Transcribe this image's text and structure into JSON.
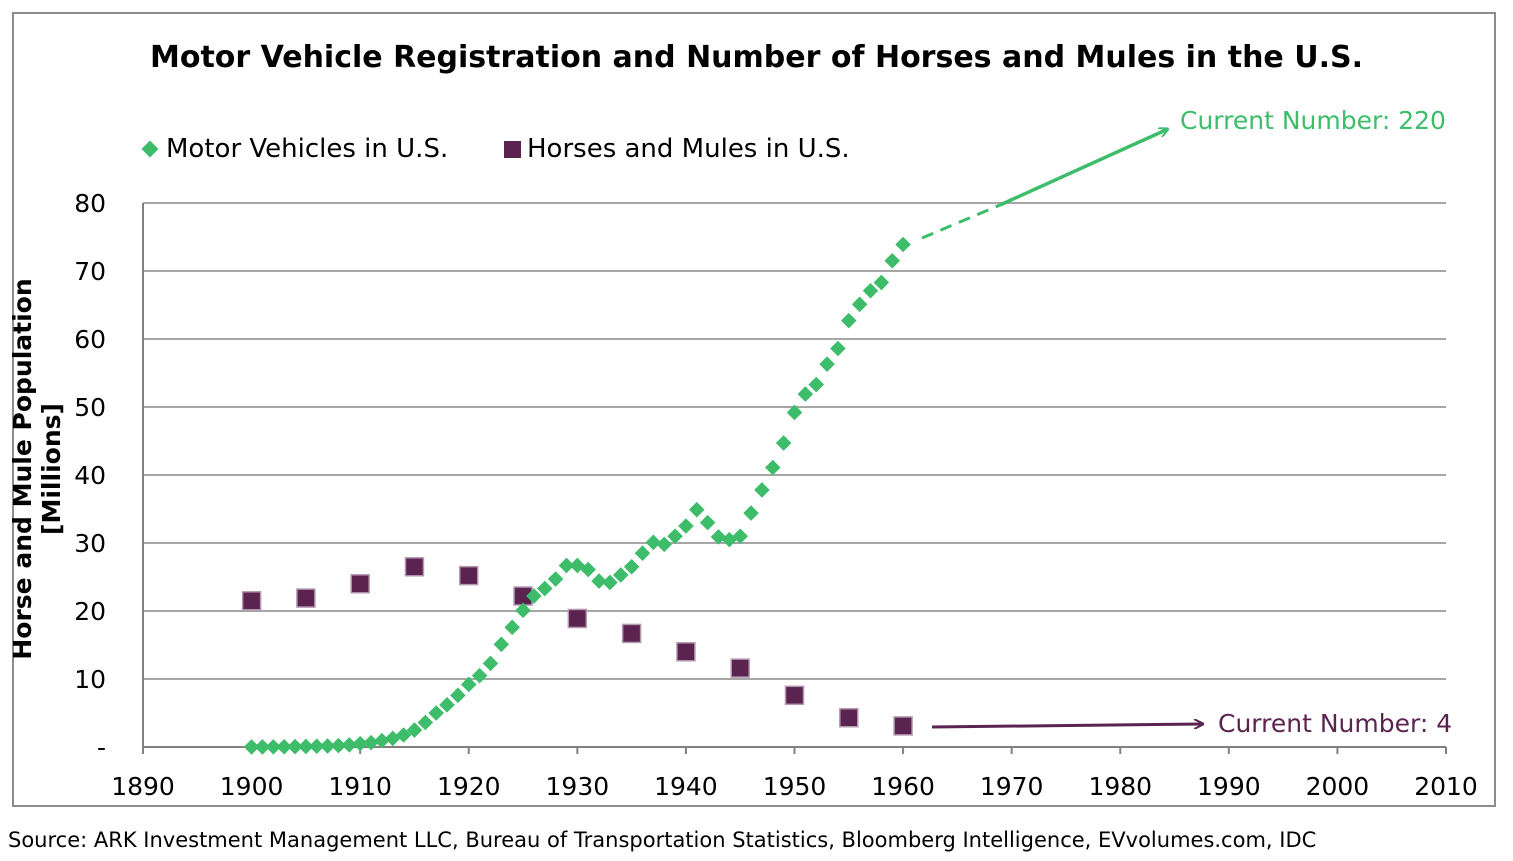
{
  "colors": {
    "motor": "#3dbd6a",
    "horse": "#5b2450",
    "grid": "#a6a6a6",
    "axis": "#808080"
  },
  "annotations": {
    "motor_current": "Current Number: 220",
    "horse_current": "Current Number: 4"
  },
  "source": "Source: ARK Investment Management LLC, Bureau of Transportation Statistics, Bloomberg Intelligence, EVvolumes.com, IDC",
  "chart_data": {
    "type": "scatter",
    "title": "Motor Vehicle Registration and Number of Horses and Mules in the U.S.",
    "xlabel": "",
    "ylabel": "Horse and Mule Population [Millions]",
    "xlim": [
      1890,
      2010
    ],
    "ylim": [
      0,
      80
    ],
    "x_ticks": [
      "1890",
      "1900",
      "1910",
      "1920",
      "1930",
      "1940",
      "1950",
      "1960",
      "1970",
      "1980",
      "1990",
      "2000",
      "2010"
    ],
    "y_ticks": [
      "-",
      "10",
      "20",
      "30",
      "40",
      "50",
      "60",
      "70",
      "80"
    ],
    "legend_position": "top-left",
    "series": [
      {
        "name": "Motor Vehicles in U.S.",
        "marker": "diamond",
        "x": [
          1900,
          1901,
          1902,
          1903,
          1904,
          1905,
          1906,
          1907,
          1908,
          1909,
          1910,
          1911,
          1912,
          1913,
          1914,
          1915,
          1916,
          1917,
          1918,
          1919,
          1920,
          1921,
          1922,
          1923,
          1924,
          1925,
          1926,
          1927,
          1928,
          1929,
          1930,
          1931,
          1932,
          1933,
          1934,
          1935,
          1936,
          1937,
          1938,
          1939,
          1940,
          1941,
          1942,
          1943,
          1944,
          1945,
          1946,
          1947,
          1948,
          1949,
          1950,
          1951,
          1952,
          1953,
          1954,
          1955,
          1956,
          1957,
          1958,
          1959,
          1960
        ],
        "values": [
          0.01,
          0.01,
          0.02,
          0.03,
          0.05,
          0.08,
          0.11,
          0.14,
          0.2,
          0.31,
          0.5,
          0.64,
          0.94,
          1.26,
          1.76,
          2.49,
          3.6,
          5.0,
          6.2,
          7.6,
          9.2,
          10.5,
          12.3,
          15.1,
          17.6,
          20.1,
          22.2,
          23.3,
          24.7,
          26.7,
          26.7,
          26.1,
          24.4,
          24.2,
          25.3,
          26.5,
          28.5,
          30.1,
          29.8,
          31.0,
          32.5,
          34.9,
          33.0,
          30.9,
          30.5,
          31.0,
          34.4,
          37.8,
          41.1,
          44.7,
          49.2,
          51.9,
          53.3,
          56.3,
          58.6,
          62.7,
          65.1,
          67.1,
          68.3,
          71.5,
          73.9
        ]
      },
      {
        "name": "Horses and Mules in U.S.",
        "marker": "square",
        "x": [
          1900,
          1905,
          1910,
          1915,
          1920,
          1925,
          1930,
          1935,
          1940,
          1945,
          1950,
          1955,
          1960
        ],
        "values": [
          21.5,
          21.9,
          24.0,
          26.5,
          25.2,
          22.2,
          18.9,
          16.7,
          14.0,
          11.6,
          7.6,
          4.3,
          3.1
        ]
      }
    ]
  }
}
